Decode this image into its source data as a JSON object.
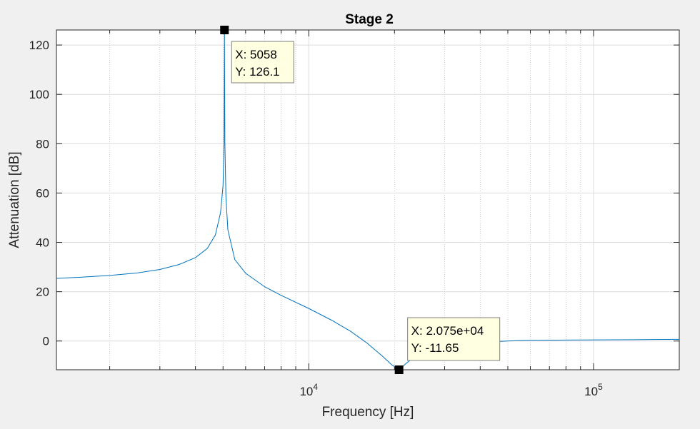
{
  "chart_data": {
    "type": "line",
    "title": "Stage 2",
    "xlabel": "Frequency [Hz]",
    "ylabel": "Attenuation [dB]",
    "xscale": "log",
    "xlim": [
      1300,
      200000
    ],
    "ylim": [
      -11.65,
      126.1
    ],
    "grid": true,
    "minor_grid": true,
    "line_color": "#0072bd",
    "yticks": [
      0,
      20,
      40,
      60,
      80,
      100,
      120
    ],
    "ytick_labels": [
      "0",
      "20",
      "40",
      "60",
      "80",
      "100",
      "120"
    ],
    "xticks": [
      {
        "value": 10000,
        "base": "10",
        "exp": "4"
      },
      {
        "value": 100000,
        "base": "10",
        "exp": "5"
      }
    ],
    "series": [
      {
        "x": [
          1300,
          1600,
          2000,
          2500,
          3000,
          3500,
          4000,
          4400,
          4700,
          4900,
          5000,
          5040,
          5058,
          5075,
          5120,
          5200,
          5500,
          6000,
          7000,
          8000,
          10000,
          12000,
          14000,
          16000,
          18000,
          19500,
          20750,
          22000,
          25000,
          30000,
          40000,
          55000,
          80000,
          120000,
          160000,
          200000
        ],
        "y": [
          25.4,
          25.9,
          26.6,
          27.6,
          29.0,
          31.0,
          33.8,
          37.5,
          43.0,
          52.0,
          63.0,
          80.0,
          126.1,
          80.0,
          58.0,
          45.0,
          33.0,
          27.5,
          22.0,
          18.5,
          13.2,
          8.5,
          4.0,
          -0.8,
          -5.8,
          -9.5,
          -11.65,
          -9.0,
          -4.2,
          -1.9,
          -0.5,
          0.2,
          0.4,
          0.5,
          0.6,
          0.7
        ]
      }
    ],
    "datatips": [
      {
        "x": 5058,
        "y": 126.1,
        "x_label": "X: 5058",
        "y_label": "Y: 126.1"
      },
      {
        "x": 20750,
        "y": -11.65,
        "x_label": "X: 2.075e+04",
        "y_label": "Y: -11.65"
      }
    ]
  }
}
